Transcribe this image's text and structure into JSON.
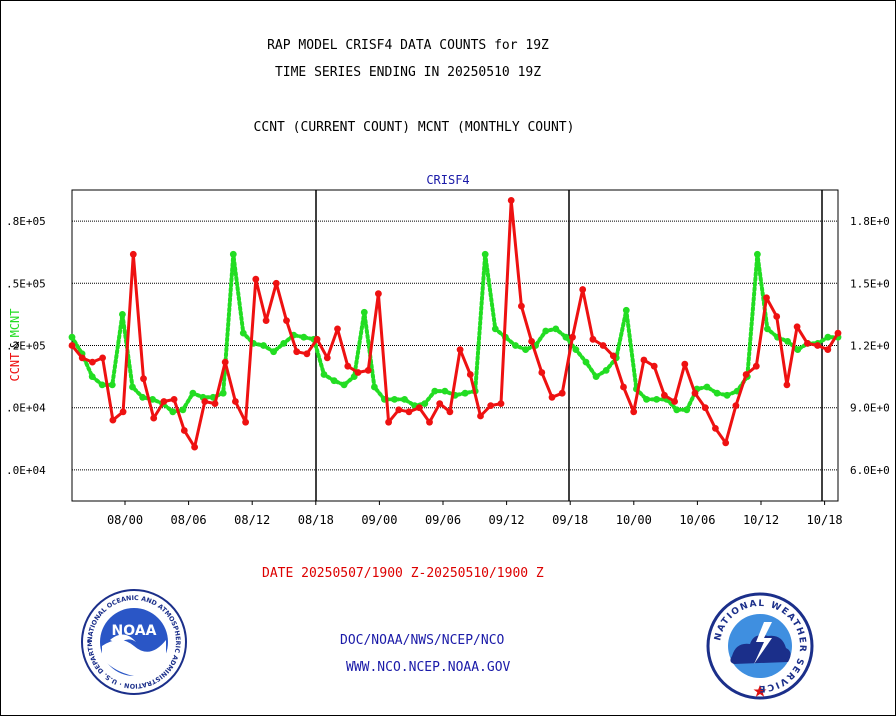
{
  "header": {
    "title_line1": "RAP MODEL CRISF4 DATA COUNTS for 19Z",
    "title_line2": "TIME SERIES ENDING IN 20250510 19Z",
    "subtitle": "CCNT (CURRENT COUNT) MCNT (MONTHLY COUNT)"
  },
  "chart_data": {
    "type": "line",
    "panel_label": "CRISF4",
    "ylabel_left_a": "CCNT",
    "ylabel_separator": "&",
    "ylabel_left_b": "MCNT",
    "x_tick_labels": [
      "08/00",
      "08/06",
      "08/12",
      "08/18",
      "09/00",
      "09/06",
      "09/12",
      "09/18",
      "10/00",
      "10/06",
      "10/12",
      "10/18"
    ],
    "y_left_tick_labels": [
      ".0E+04",
      ".0E+04",
      ".2E+05",
      ".5E+05",
      ".8E+05"
    ],
    "y_right_tick_labels": [
      "6.0E+0",
      "9.0E+0",
      "1.2E+0",
      "1.5E+0",
      "1.8E+0"
    ],
    "ylim": [
      45000,
      195000
    ],
    "colors": {
      "ccnt": "#ee1111",
      "mcnt": "#22dd22",
      "grid": "#000000"
    },
    "series": [
      {
        "name": "CCNT",
        "color": "#ee1111",
        "style": "solid",
        "values": [
          120000,
          114000,
          112000,
          114000,
          84000,
          88000,
          164000,
          104000,
          85000,
          93000,
          94000,
          79000,
          71000,
          93000,
          92000,
          112000,
          93000,
          83000,
          152000,
          132000,
          150000,
          132000,
          117000,
          116000,
          123000,
          114000,
          128000,
          110000,
          107000,
          108000,
          145000,
          83000,
          89000,
          88000,
          90000,
          83000,
          92000,
          88000,
          118000,
          106000,
          86000,
          91000,
          92000,
          190000,
          139000,
          122000,
          107000,
          95000,
          97000,
          124000,
          147000,
          123000,
          120000,
          115000,
          100000,
          88000,
          113000,
          110000,
          96000,
          93000,
          111000,
          97000,
          90000,
          80000,
          73000,
          91000,
          106000,
          110000,
          143000,
          134000,
          101000,
          129000,
          121000,
          120000,
          118000,
          126000
        ]
      },
      {
        "name": "MCNT",
        "color": "#22dd22",
        "style": "dotted",
        "values": [
          124000,
          116000,
          105000,
          101000,
          101000,
          135000,
          100000,
          95000,
          94000,
          92000,
          88000,
          89000,
          97000,
          95000,
          95000,
          97000,
          164000,
          126000,
          121000,
          120000,
          117000,
          121000,
          125000,
          124000,
          123000,
          106000,
          103000,
          101000,
          105000,
          136000,
          100000,
          94000,
          94000,
          94000,
          91000,
          92000,
          98000,
          98000,
          96000,
          97000,
          98000,
          164000,
          128000,
          124000,
          120000,
          118000,
          120000,
          127000,
          128000,
          124000,
          118000,
          112000,
          105000,
          108000,
          114000,
          137000,
          99000,
          94000,
          94000,
          94000,
          89000,
          89000,
          99000,
          100000,
          97000,
          96000,
          98000,
          105000,
          164000,
          128000,
          124000,
          122000,
          118000,
          121000,
          121000,
          124000,
          124000
        ]
      }
    ]
  },
  "footer": {
    "date_range": "DATE 20250507/1900 Z-20250510/1900 Z",
    "link1": "DOC/NOAA/NWS/NCEP/NCO",
    "link2": "WWW.NCO.NCEP.NOAA.GOV"
  },
  "logos": {
    "noaa": {
      "center_text": "NOAA",
      "ring_text": "NATIONAL OCEANIC AND ATMOSPHERIC ADMINISTRATION · U.S. DEPARTMENT OF COMMERCE ·"
    },
    "nws": {
      "ring_text": "NATIONAL WEATHER SERVICE"
    }
  }
}
